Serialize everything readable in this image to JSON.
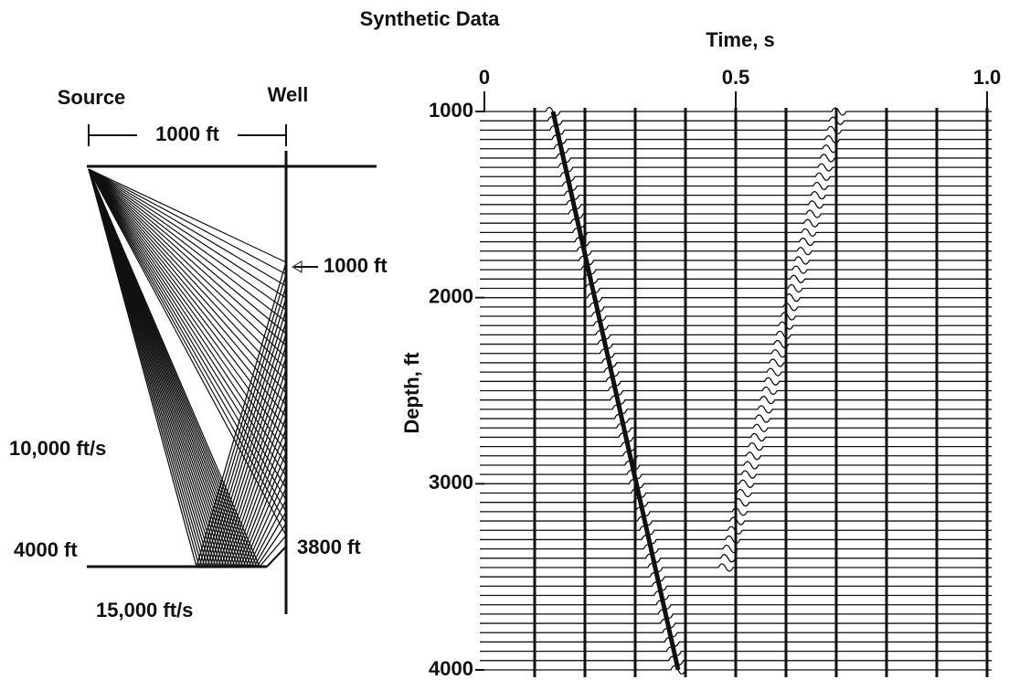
{
  "title": "Synthetic Data",
  "ray_diagram": {
    "source": "Source",
    "well": "Well",
    "offset": "1000 ft",
    "top_receiver": "1000 ft",
    "bottom_receiver": "3800 ft",
    "upper_velocity": "10,000 ft/s",
    "interface_depth": "4000 ft",
    "lower_velocity": "15,000 ft/s"
  },
  "trace_plot": {
    "x_label": "Time, s",
    "xlim": [
      0,
      1
    ],
    "xticks": [
      0,
      0.5,
      {
        "value": 1,
        "label": "1.0"
      }
    ],
    "y_label": "Depth, ft",
    "ylim": [
      1000,
      4000
    ],
    "yticks": [
      1000,
      2000,
      3000,
      4000
    ]
  }
}
